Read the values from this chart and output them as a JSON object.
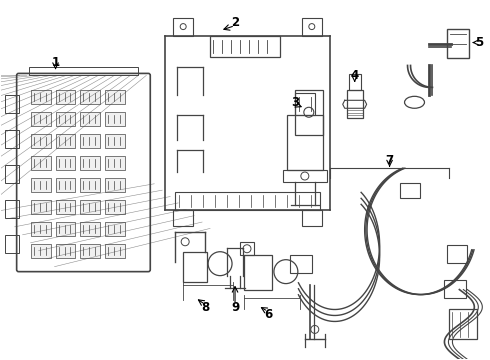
{
  "background_color": "#ffffff",
  "line_color": "#444444",
  "text_color": "#000000",
  "label_fontsize": 8.5,
  "fig_width": 4.9,
  "fig_height": 3.6,
  "dpi": 100
}
